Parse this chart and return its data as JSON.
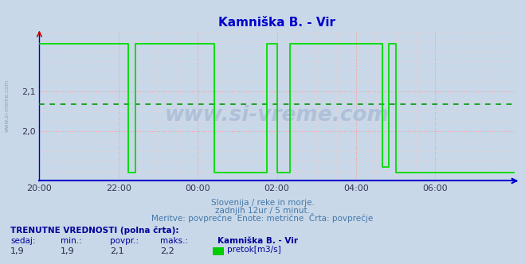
{
  "title": "Kamniška B. - Vir",
  "title_color": "#0000cc",
  "bg_color": "#c8d8e8",
  "plot_bg_color": "#c8d8e8",
  "x_labels": [
    "20:00",
    "22:00",
    "00:00",
    "02:00",
    "04:00",
    "06:00"
  ],
  "ylim": [
    1.875,
    2.25
  ],
  "yticks": [
    2.0,
    2.1
  ],
  "avg_line_y": 2.067,
  "line_color": "#00dd00",
  "avg_line_color": "#009900",
  "axis_color": "#0000cc",
  "grid_color_major": "#ff9999",
  "grid_color_minor": "#ffcccc",
  "watermark": "www.si-vreme.com",
  "watermark_color": "#b0c0d8",
  "subtitle1": "Slovenija / reke in morje.",
  "subtitle2": "zadnjih 12ur / 5 minut.",
  "subtitle3": "Meritve: povprečne  Enote: metrične  Črta: povprečje",
  "subtitle_color": "#4477aa",
  "footer_title": "TRENUTNE VREDNOSTI (polna črta):",
  "footer_cols": [
    "sedaj:",
    "min.:",
    "povpr.:",
    "maks.:",
    "Kamniška B. - Vir"
  ],
  "footer_vals": [
    "1,9",
    "1,9",
    "2,1",
    "2,2"
  ],
  "footer_legend": "pretok[m3/s]",
  "legend_color": "#00cc00",
  "total_hours": 12,
  "signal_x": [
    0.0,
    2.25,
    2.25,
    2.42,
    2.42,
    4.42,
    4.42,
    5.75,
    5.75,
    6.0,
    6.0,
    6.33,
    6.33,
    8.67,
    8.67,
    8.83,
    8.83,
    9.0,
    9.0,
    10.75,
    10.75,
    12.0
  ],
  "signal_y": [
    2.22,
    2.22,
    1.895,
    1.895,
    2.22,
    2.22,
    1.895,
    1.895,
    2.22,
    2.22,
    1.895,
    1.895,
    2.22,
    2.22,
    1.91,
    1.91,
    2.22,
    2.22,
    1.895,
    1.895,
    1.895,
    1.895
  ]
}
